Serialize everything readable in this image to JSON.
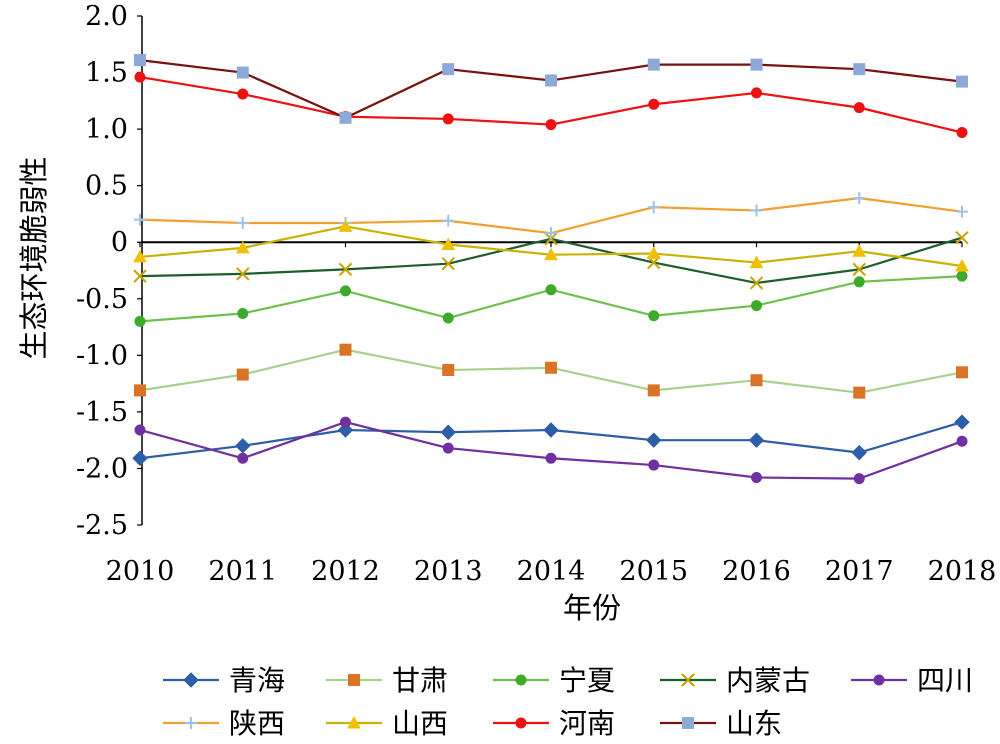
{
  "chart_data": {
    "type": "line",
    "xlabel": "年份",
    "ylabel": "生态环境脆弱性",
    "ylim": [
      -2.5,
      2.0
    ],
    "y_ticks": [
      "2.0",
      "1.5",
      "1.0",
      "0.5",
      "0",
      "-0.5",
      "-1.0",
      "-1.5",
      "-2.0",
      "-2.5"
    ],
    "categories": [
      "2010",
      "2011",
      "2012",
      "2013",
      "2014",
      "2015",
      "2016",
      "2017",
      "2018"
    ],
    "grid": false,
    "legend_position": "bottom",
    "series": [
      {
        "name": "青海",
        "color": "#2e5ea8",
        "marker": "diamond",
        "values": [
          -1.91,
          -1.8,
          -1.66,
          -1.68,
          -1.66,
          -1.75,
          -1.75,
          -1.86,
          -1.59
        ]
      },
      {
        "name": "甘肃",
        "color": "#a9d18e",
        "marker": "square",
        "marker_color": "#d97326",
        "values": [
          -1.31,
          -1.17,
          -0.95,
          -1.13,
          -1.11,
          -1.31,
          -1.22,
          -1.33,
          -1.15
        ]
      },
      {
        "name": "宁夏",
        "color": "#70c050",
        "marker": "circle",
        "marker_color": "#3daa2c",
        "values": [
          -0.7,
          -0.63,
          -0.43,
          -0.67,
          -0.42,
          -0.65,
          -0.56,
          -0.35,
          -0.3
        ]
      },
      {
        "name": "内蒙古",
        "color": "#1e5e2a",
        "marker": "x",
        "marker_color": "#c9a300",
        "values": [
          -0.3,
          -0.28,
          -0.24,
          -0.19,
          0.03,
          -0.18,
          -0.36,
          -0.24,
          0.04
        ]
      },
      {
        "name": "四川",
        "color": "#7030a0",
        "marker": "circle",
        "values": [
          -1.66,
          -1.91,
          -1.59,
          -1.82,
          -1.91,
          -1.97,
          -2.08,
          -2.09,
          -1.76
        ]
      },
      {
        "name": "陕西",
        "color": "#f0a030",
        "marker": "plus",
        "marker_color": "#9dc3e6",
        "values": [
          0.2,
          0.17,
          0.17,
          0.19,
          0.08,
          0.31,
          0.28,
          0.39,
          0.27
        ]
      },
      {
        "name": "山西",
        "color": "#c8b400",
        "marker": "triangle",
        "marker_color": "#f0c000",
        "values": [
          -0.13,
          -0.05,
          0.14,
          -0.02,
          -0.11,
          -0.1,
          -0.18,
          -0.08,
          -0.21
        ]
      },
      {
        "name": "河南",
        "color": "#ee1111",
        "marker": "circle",
        "marker_color": "#ee1111",
        "values": [
          1.46,
          1.31,
          1.11,
          1.09,
          1.04,
          1.22,
          1.32,
          1.19,
          0.97
        ]
      },
      {
        "name": "山东",
        "color": "#7a1010",
        "marker": "square",
        "marker_color": "#8da9d8",
        "values": [
          1.61,
          1.5,
          1.1,
          1.53,
          1.43,
          1.57,
          1.57,
          1.53,
          1.42
        ]
      }
    ]
  }
}
